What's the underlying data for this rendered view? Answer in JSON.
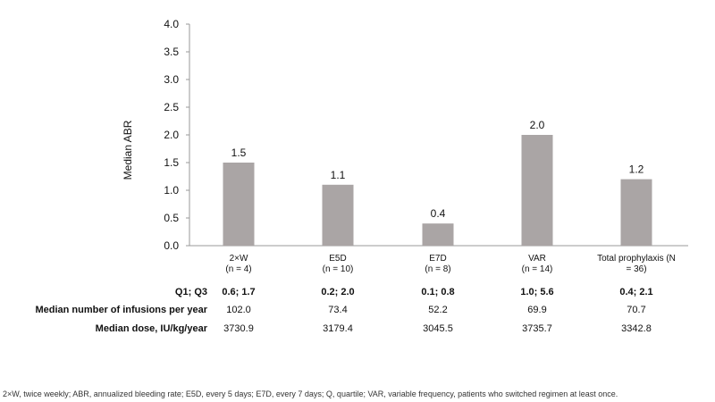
{
  "chart_data": {
    "type": "bar",
    "ylabel": "Median ABR",
    "ylim": [
      0,
      4.0
    ],
    "yticks": [
      "0.0",
      "0.5",
      "1.0",
      "1.5",
      "2.0",
      "2.5",
      "3.0",
      "3.5",
      "4.0"
    ],
    "grid": false,
    "bar_color": "#aaa5a5",
    "categories": [
      {
        "line1": "2×W",
        "line2": "(n = 4)"
      },
      {
        "line1": "E5D",
        "line2": "(n = 10)"
      },
      {
        "line1": "E7D",
        "line2": "(n = 8)"
      },
      {
        "line1": "VAR",
        "line2": "(n = 14)"
      },
      {
        "line1": "Total prophylaxis (N",
        "line2": "= 36)"
      }
    ],
    "values": [
      1.5,
      1.1,
      0.4,
      2.0,
      1.2
    ],
    "data_labels": [
      "1.5",
      "1.1",
      "0.4",
      "2.0",
      "1.2"
    ]
  },
  "table": {
    "rows": [
      {
        "label": "Q1; Q3",
        "bold_values": true,
        "values": [
          "0.6; 1.7",
          "0.2; 2.0",
          "0.1; 0.8",
          "1.0; 5.6",
          "0.4; 2.1"
        ]
      },
      {
        "label": "Median number of infusions per year",
        "bold_values": false,
        "values": [
          "102.0",
          "73.4",
          "52.2",
          "69.9",
          "70.7"
        ]
      },
      {
        "label": "Median dose, IU/kg/year",
        "bold_values": false,
        "values": [
          "3730.9",
          "3179.4",
          "3045.5",
          "3735.7",
          "3342.8"
        ]
      }
    ]
  },
  "footnote": "2×W, twice weekly; ABR, annualized bleeding rate; E5D, every 5 days; E7D, every 7 days; Q, quartile; VAR, variable frequency, patients who switched regimen at least once."
}
